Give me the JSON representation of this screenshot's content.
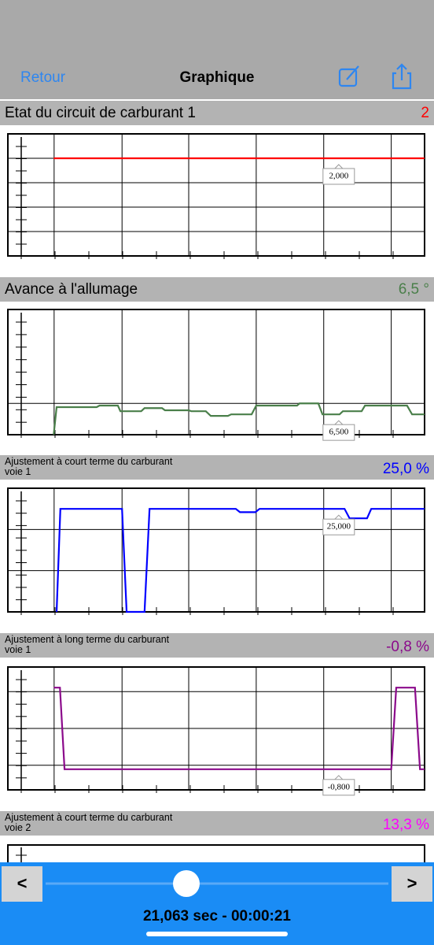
{
  "header": {
    "back": "Retour",
    "title": "Graphique"
  },
  "chart_data": [
    {
      "type": "line",
      "title": "Etat du circuit de carburant 1",
      "current_value": "2",
      "cursor_label": "2,000",
      "cursor_x": 79.4,
      "color": "#ff0000",
      "x": [
        11,
        100
      ],
      "values": [
        2,
        2
      ],
      "xlim": [
        0,
        100
      ],
      "ylim": [
        -2,
        3
      ],
      "xticks": [
        11.1,
        27.4,
        43.4,
        59.6,
        75.8,
        92
      ],
      "yticks": [
        -1,
        0,
        1,
        2
      ],
      "grid": true
    },
    {
      "type": "line",
      "title": "Avance à l'allumage",
      "current_value": "6,5 °",
      "cursor_label": "6,500",
      "cursor_x": 79.4,
      "color": "#4a7f4a",
      "x": [
        11,
        11.7,
        21.3,
        22,
        26.4,
        27,
        32,
        32.8,
        37,
        37.7,
        43.4,
        44,
        47.5,
        48.7,
        52.8,
        53.6,
        58.5,
        59.6,
        69.4,
        70,
        74.5,
        75.5,
        79.6,
        80.4,
        84.9,
        85.7,
        95.8,
        97,
        100
      ],
      "values": [
        0,
        8.8,
        8.8,
        9.3,
        9.3,
        7.5,
        7.5,
        8.5,
        8.5,
        7.8,
        7.8,
        7.5,
        7.5,
        6,
        6,
        6.5,
        6.5,
        9.3,
        9.3,
        10,
        10,
        6.5,
        6.5,
        7.5,
        7.5,
        9.3,
        9.3,
        6.5,
        6.5
      ],
      "xlim": [
        0,
        100
      ],
      "ylim": [
        0,
        40
      ],
      "xticks": [
        11.1,
        27.4,
        43.4,
        59.6,
        75.8,
        92
      ],
      "yticks": [
        10
      ],
      "grid": true
    },
    {
      "type": "line",
      "title": "Ajustement à court terme du carburant\nvoie 1",
      "current_value": "25,0 %",
      "cursor_label": "25,000",
      "cursor_x": 79.4,
      "color": "#0000ff",
      "x": [
        11.7,
        12.6,
        27.4,
        28.5,
        32.8,
        34,
        54.7,
        55.7,
        59.4,
        60.4,
        80.8,
        82,
        86.2,
        87.2,
        100
      ],
      "values": [
        0,
        25,
        25,
        0,
        0,
        25,
        25,
        24.2,
        24.2,
        25,
        25,
        22.7,
        22.7,
        25,
        25
      ],
      "xlim": [
        0,
        100
      ],
      "ylim": [
        0,
        30
      ],
      "xticks": [
        11.1,
        27.4,
        43.4,
        59.6,
        75.8,
        92
      ],
      "yticks": [
        10,
        20
      ],
      "grid": true
    },
    {
      "type": "line",
      "title": "Ajustement à long terme du carburant\nvoie 1",
      "current_value": "-0,8 %",
      "cursor_label": "-0,800",
      "cursor_x": 79.4,
      "color": "#8b0a8b",
      "x": [
        11,
        12.5,
        13.6,
        92,
        93.2,
        97.7,
        98.9,
        100
      ],
      "values": [
        15.8,
        15.8,
        -0.8,
        -0.8,
        15.8,
        15.8,
        -0.8,
        -0.8
      ],
      "xlim": [
        0,
        100
      ],
      "ylim": [
        -5,
        20
      ],
      "xticks": [
        11.1,
        27.4,
        43.4,
        59.6,
        75.8,
        92
      ],
      "yticks": [
        0,
        7.5,
        15
      ],
      "grid": true
    }
  ],
  "partial_panel": {
    "title": "Ajustement à court terme du carburant\nvoie 2",
    "current_value": "13,3 %",
    "color": "#ff00ff"
  },
  "footer": {
    "prev": "<",
    "next": ">",
    "time": "21,063 sec - 00:00:21"
  }
}
